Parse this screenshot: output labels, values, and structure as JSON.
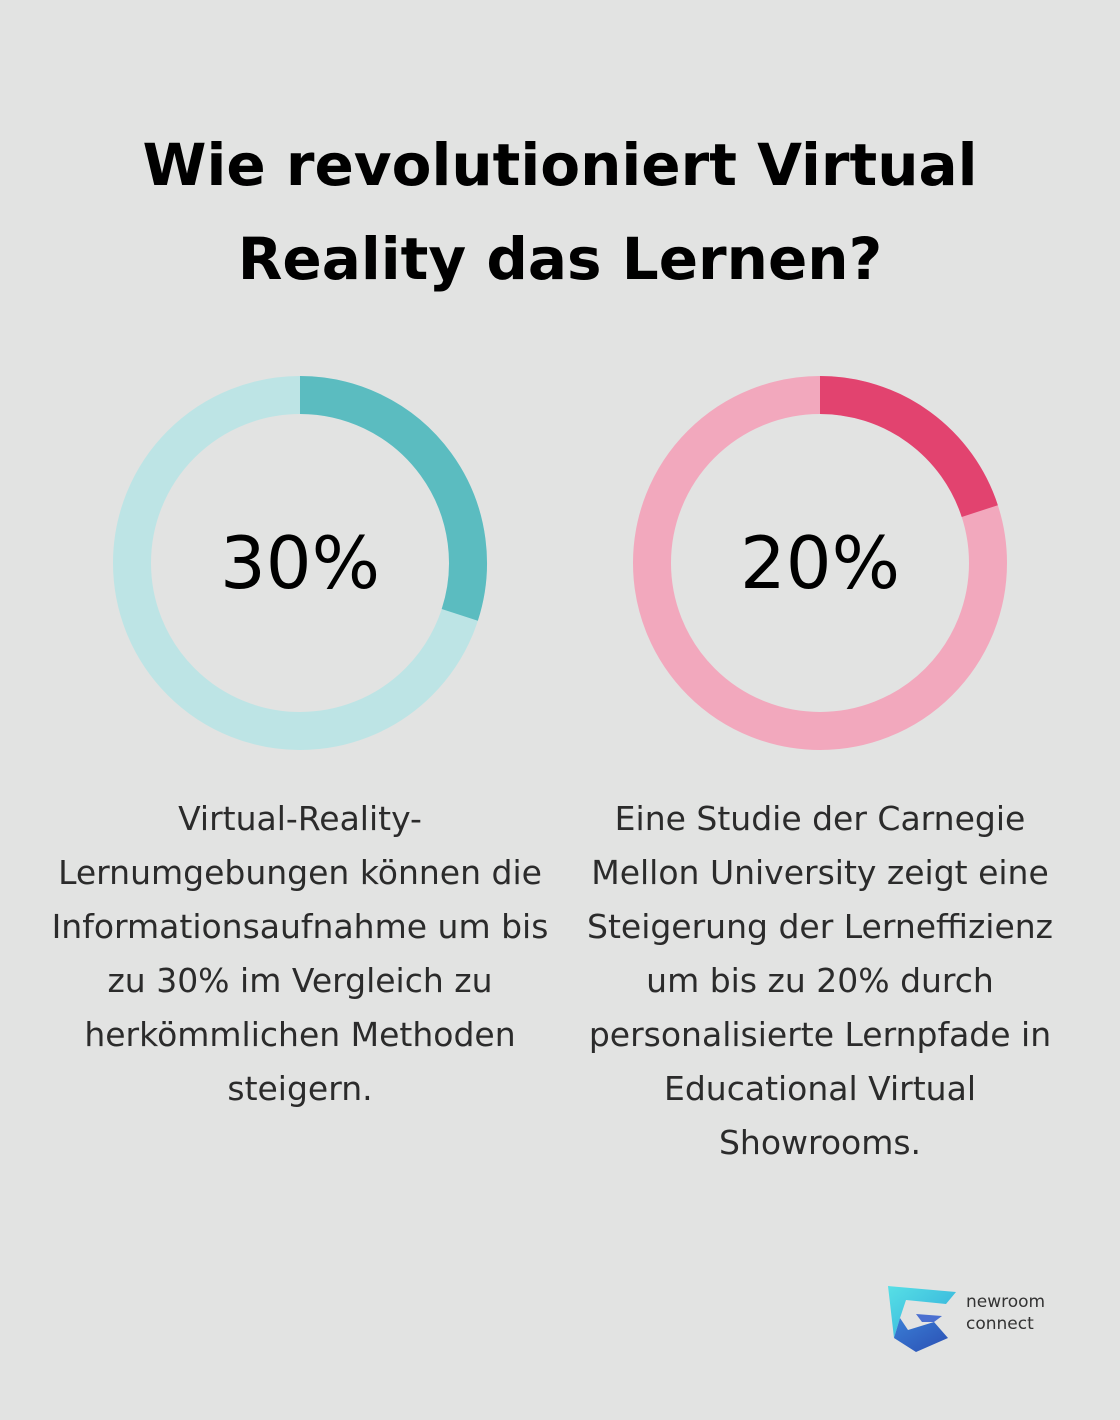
{
  "title": "Wie revolutioniert Virtual Reality das Lernen?",
  "chart_data": [
    {
      "type": "pie",
      "variant": "donut",
      "value": 30,
      "max": 100,
      "label": "30%",
      "colors": {
        "filled": "#5bbcc0",
        "track": "#bde4e5"
      },
      "description": "Virtual-Reality-Lernumgebungen können die Informationsaufnahme um bis zu 30% im Vergleich zu herkömmlichen Methoden steigern."
    },
    {
      "type": "pie",
      "variant": "donut",
      "value": 20,
      "max": 100,
      "label": "20%",
      "colors": {
        "filled": "#e2436f",
        "track": "#f2a8bd"
      },
      "description": "Eine Studie der Carnegie Mellon University zeigt eine Steigerung der Lerneffizienz um bis zu 20% durch personalisierte Lernpfade in Educational Virtual Showrooms."
    }
  ],
  "logo": {
    "icon": "newroom-connect-logo-icon",
    "line1": "newroom",
    "line2": "connect"
  }
}
